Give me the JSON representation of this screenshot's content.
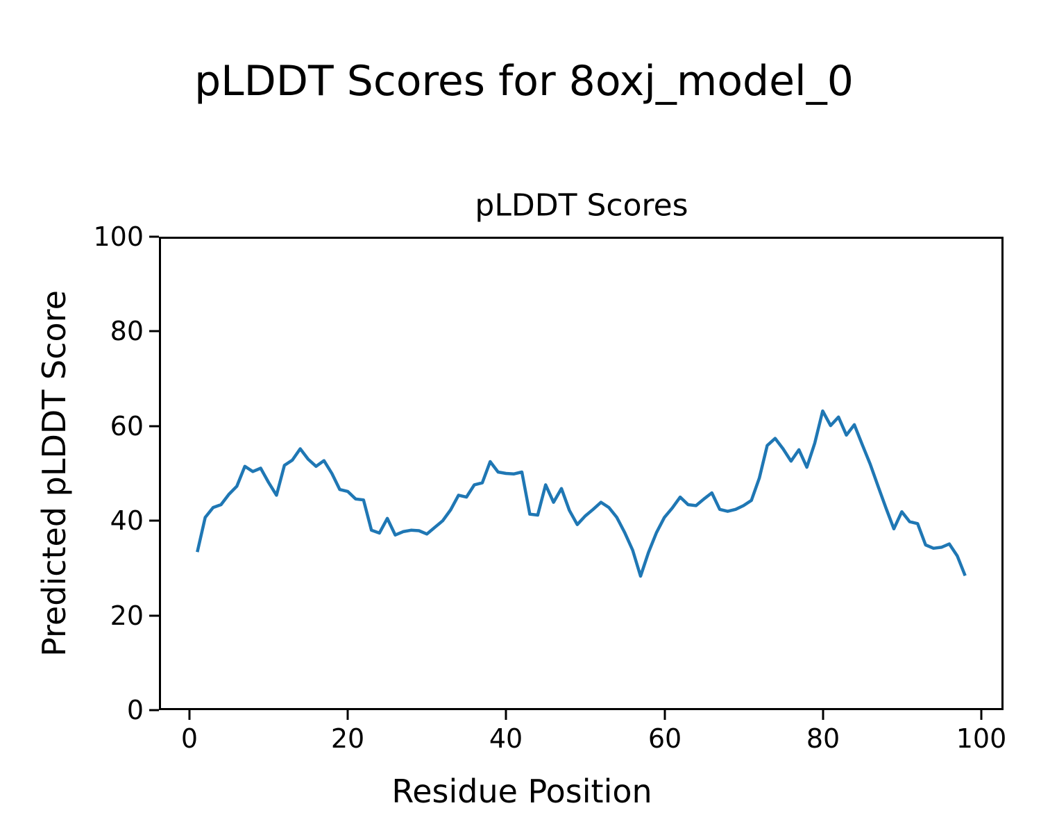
{
  "figure": {
    "suptitle": "pLDDT Scores for 8oxj_model_0"
  },
  "chart_data": {
    "type": "line",
    "title": "pLDDT Scores",
    "xlabel": "Residue Position",
    "ylabel": "Predicted pLDDT Score",
    "grid": false,
    "legend_position": "none",
    "xlim": [
      -3.85,
      102.85
    ],
    "ylim": [
      0,
      100
    ],
    "x_ticks": [
      0,
      20,
      40,
      60,
      80,
      100
    ],
    "y_ticks": [
      0,
      20,
      40,
      60,
      80,
      100
    ],
    "series": [
      {
        "name": "pLDDT",
        "color": "#1f77b4",
        "line_width": 4.5,
        "x": [
          1,
          2,
          3,
          4,
          5,
          6,
          7,
          8,
          9,
          10,
          11,
          12,
          13,
          14,
          15,
          16,
          17,
          18,
          19,
          20,
          21,
          22,
          23,
          24,
          25,
          26,
          27,
          28,
          29,
          30,
          31,
          32,
          33,
          34,
          35,
          36,
          37,
          38,
          39,
          40,
          41,
          42,
          43,
          44,
          45,
          46,
          47,
          48,
          49,
          50,
          51,
          52,
          53,
          54,
          55,
          56,
          57,
          58,
          59,
          60,
          61,
          62,
          63,
          64,
          65,
          66,
          67,
          68,
          69,
          70,
          71,
          72,
          73,
          74,
          75,
          76,
          77,
          78,
          79,
          80,
          81,
          82,
          83,
          84,
          85,
          86,
          87,
          88,
          89,
          90,
          91,
          92,
          93,
          94,
          95,
          96,
          97,
          98
        ],
        "y": [
          33.4,
          40.7,
          42.8,
          43.4,
          45.6,
          47.3,
          51.5,
          50.4,
          51.1,
          48.1,
          45.4,
          51.7,
          52.8,
          55.2,
          53.0,
          51.5,
          52.7,
          50.0,
          46.6,
          46.2,
          44.6,
          44.4,
          38.0,
          37.4,
          40.5,
          37.0,
          37.7,
          38.0,
          37.9,
          37.2,
          38.6,
          40.0,
          42.3,
          45.4,
          45.0,
          47.6,
          48.0,
          52.5,
          50.3,
          50.0,
          49.9,
          50.3,
          41.4,
          41.2,
          47.6,
          43.9,
          46.8,
          42.2,
          39.2,
          41.0,
          42.4,
          43.9,
          42.8,
          40.7,
          37.5,
          33.8,
          28.3,
          33.3,
          37.5,
          40.7,
          42.7,
          45.0,
          43.4,
          43.2,
          44.6,
          45.9,
          42.4,
          42.0,
          42.4,
          43.2,
          44.3,
          49.0,
          55.9,
          57.4,
          55.2,
          52.6,
          55.0,
          51.3,
          56.4,
          63.2,
          60.1,
          61.9,
          58.1,
          60.3,
          56.1,
          52.0,
          47.3,
          42.7,
          38.3,
          41.9,
          39.8,
          39.4,
          34.9,
          34.2,
          34.4,
          35.1,
          32.6,
          28.4
        ]
      }
    ]
  }
}
